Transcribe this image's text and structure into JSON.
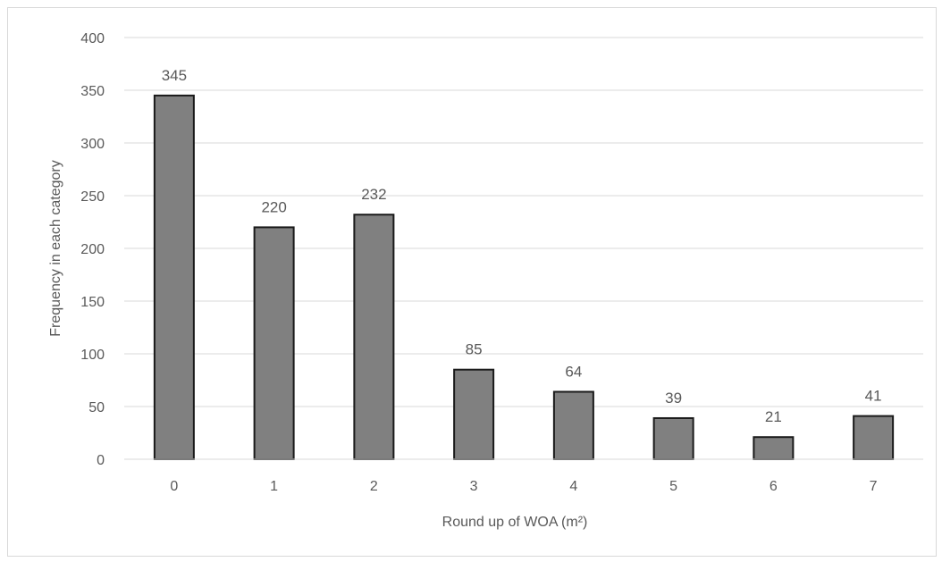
{
  "chart_data": {
    "type": "bar",
    "categories": [
      "0",
      "1",
      "2",
      "3",
      "4",
      "5",
      "6",
      "7"
    ],
    "values": [
      345,
      220,
      232,
      85,
      64,
      39,
      21,
      41
    ],
    "title": "",
    "xlabel": "Round up of WOA (m²)",
    "ylabel": "Frequency in each category",
    "ylim": [
      0,
      400
    ],
    "yticks": [
      0,
      50,
      100,
      150,
      200,
      250,
      300,
      350,
      400
    ],
    "grid": true,
    "legend": "none",
    "data_labels": true,
    "colors": {
      "bar_fill": "#808080",
      "bar_stroke": "#1a1a1a",
      "grid": "#d9d9d9",
      "text": "#595959"
    }
  }
}
